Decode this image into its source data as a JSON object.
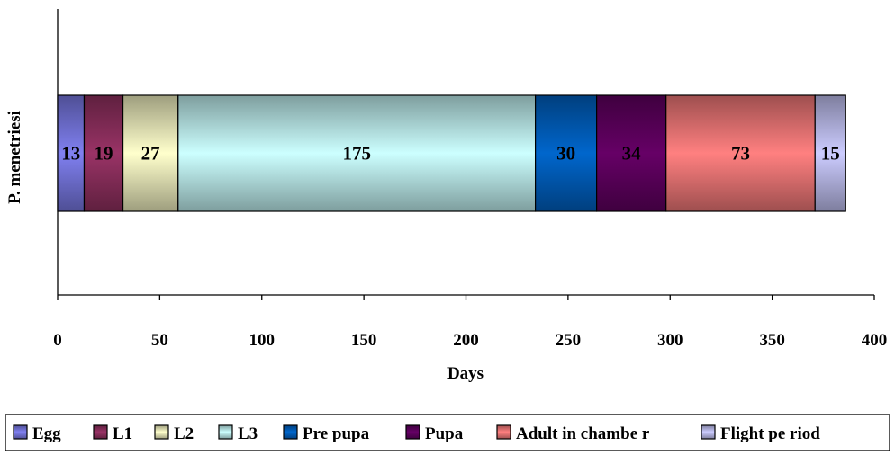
{
  "chart_data": {
    "type": "bar",
    "orientation": "horizontal",
    "stacked": true,
    "categories": [
      "P. menetriesi"
    ],
    "ylabel": "P. menetriesi",
    "xlabel": "Days",
    "xlim": [
      0,
      400
    ],
    "xticks": [
      0,
      50,
      100,
      150,
      200,
      250,
      300,
      350,
      400
    ],
    "grid": false,
    "legend_position": "bottom",
    "series": [
      {
        "name": "Egg",
        "values": [
          13
        ],
        "color": "#8080f0"
      },
      {
        "name": "L1",
        "values": [
          19
        ],
        "color": "#993366"
      },
      {
        "name": "L2",
        "values": [
          27
        ],
        "color": "#ffffcc"
      },
      {
        "name": "L3",
        "values": [
          175
        ],
        "color": "#ccffff"
      },
      {
        "name": "Prepupa",
        "values": [
          30
        ],
        "color": "#0066cc"
      },
      {
        "name": "Pupa",
        "values": [
          34
        ],
        "color": "#660066"
      },
      {
        "name": "Adult in chamber",
        "values": [
          73
        ],
        "color": "#ff8080"
      },
      {
        "name": "Flight period",
        "values": [
          15
        ],
        "color": "#ccccff"
      }
    ],
    "data_labels": [
      "13",
      "19",
      "27",
      "175",
      "30",
      "34",
      "73",
      "15"
    ],
    "legend_labels": [
      "Egg",
      "L1",
      "L2",
      "L3",
      "Pre pupa",
      "Pupa",
      "Adult in chambe r",
      "Flight pe riod"
    ]
  }
}
